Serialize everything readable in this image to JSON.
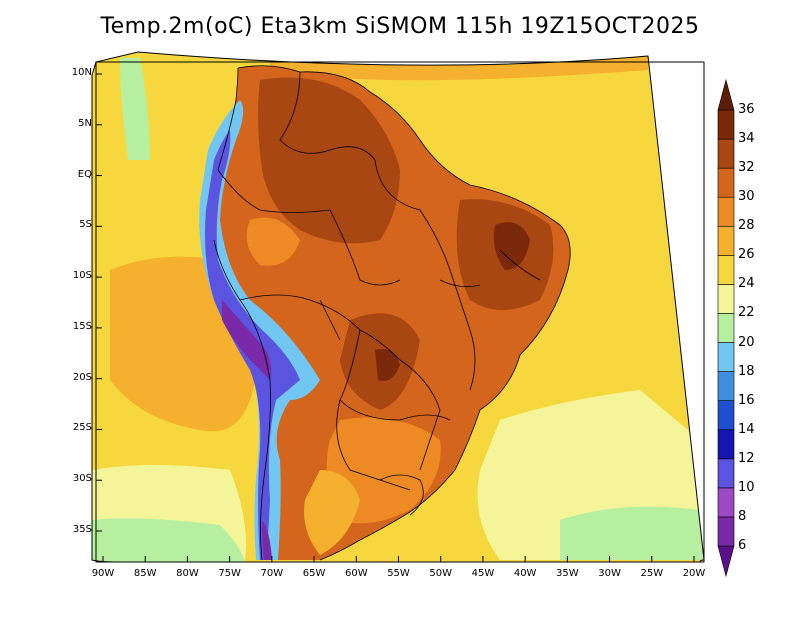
{
  "title": "Temp.2m(oC) Eta3km SiSMOM 115h 19Z15OCT2025",
  "lat_axis": {
    "labels": [
      "10N",
      "5N",
      "EQ",
      "5S",
      "10S",
      "15S",
      "20S",
      "25S",
      "30S",
      "35S"
    ],
    "values": [
      10,
      5,
      0,
      -5,
      -10,
      -15,
      -20,
      -25,
      -30,
      -35
    ]
  },
  "lon_axis": {
    "labels": [
      "90W",
      "85W",
      "80W",
      "75W",
      "70W",
      "65W",
      "60W",
      "55W",
      "50W",
      "45W",
      "40W",
      "35W",
      "30W",
      "25W",
      "20W"
    ],
    "values": [
      -90,
      -85,
      -80,
      -75,
      -70,
      -65,
      -60,
      -55,
      -50,
      -45,
      -40,
      -35,
      -30,
      -25,
      -20
    ]
  },
  "colorbar": {
    "labels": [
      "6",
      "8",
      "10",
      "12",
      "14",
      "16",
      "18",
      "20",
      "22",
      "24",
      "26",
      "28",
      "30",
      "32",
      "34",
      "36"
    ],
    "bins": [
      {
        "lo": null,
        "hi": 6,
        "color": "#5b0f8c"
      },
      {
        "lo": 6,
        "hi": 8,
        "color": "#7a2aa8"
      },
      {
        "lo": 8,
        "hi": 10,
        "color": "#9b49c4"
      },
      {
        "lo": 10,
        "hi": 12,
        "color": "#5b54e0"
      },
      {
        "lo": 12,
        "hi": 14,
        "color": "#1515b0"
      },
      {
        "lo": 14,
        "hi": 16,
        "color": "#1f4fd0"
      },
      {
        "lo": 16,
        "hi": 18,
        "color": "#3f8ee0"
      },
      {
        "lo": 18,
        "hi": 20,
        "color": "#72c6f2"
      },
      {
        "lo": 20,
        "hi": 22,
        "color": "#b7efa0"
      },
      {
        "lo": 22,
        "hi": 24,
        "color": "#f3f598"
      },
      {
        "lo": 24,
        "hi": 26,
        "color": "#f7d73e"
      },
      {
        "lo": 26,
        "hi": 28,
        "color": "#f5b02e"
      },
      {
        "lo": 28,
        "hi": 30,
        "color": "#ee8a24"
      },
      {
        "lo": 30,
        "hi": 32,
        "color": "#d4651c"
      },
      {
        "lo": 32,
        "hi": 34,
        "color": "#a94712"
      },
      {
        "lo": 34,
        "hi": 36,
        "color": "#7a2a0a"
      },
      {
        "lo": 36,
        "hi": null,
        "color": "#5c1e05"
      }
    ]
  },
  "regions": {
    "ocean_far": "#f7d73e",
    "ocean_near": "#f5b02e",
    "ocean_south": "#f3f598",
    "ocean_pole": "#b7efa0",
    "land_main": "#d4651c",
    "land_hot": "#a94712",
    "land_very_hot": "#7a2a0a",
    "land_mild": "#ee8a24",
    "andes_cold": "#5b54e0",
    "andes_cool": "#72c6f2",
    "andes_core": "#7a2aa8"
  }
}
